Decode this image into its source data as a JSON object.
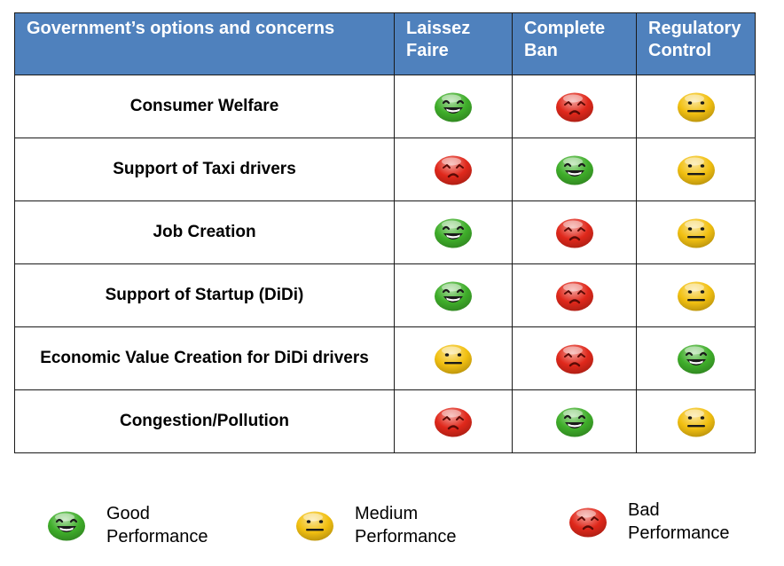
{
  "table": {
    "headers": [
      "Government’s options and concerns",
      "Laissez\nFaire",
      "Complete\nBan",
      "Regulatory\nControl"
    ],
    "rows": [
      {
        "label": "Consumer Welfare",
        "ratings": [
          "good",
          "bad",
          "medium"
        ]
      },
      {
        "label": "Support of Taxi drivers",
        "ratings": [
          "bad",
          "good",
          "medium"
        ]
      },
      {
        "label": "Job Creation",
        "ratings": [
          "good",
          "bad",
          "medium"
        ]
      },
      {
        "label": "Support of Startup (DiDi)",
        "ratings": [
          "good",
          "bad",
          "medium"
        ]
      },
      {
        "label": "Economic Value Creation for DiDi  drivers",
        "ratings": [
          "medium",
          "bad",
          "good"
        ]
      },
      {
        "label": "Congestion/Pollution",
        "ratings": [
          "bad",
          "good",
          "medium"
        ]
      }
    ]
  },
  "legend": [
    {
      "rating": "good",
      "label": "Good\nPerformance"
    },
    {
      "rating": "medium",
      "label": "Medium\nPerformance"
    },
    {
      "rating": "bad",
      "label": "Bad\nPerformance"
    }
  ],
  "faces": {
    "good": {
      "icon": "smiley-face-icon",
      "color": "#3fae2a"
    },
    "medium": {
      "icon": "neutral-face-icon",
      "color": "#f2c011"
    },
    "bad": {
      "icon": "sad-face-icon",
      "color": "#e0281b"
    }
  }
}
